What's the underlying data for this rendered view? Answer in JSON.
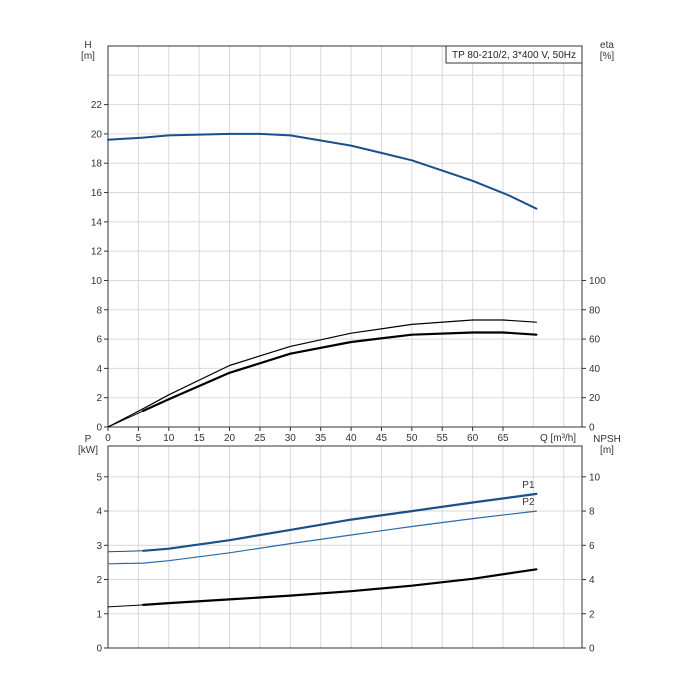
{
  "chart_data": [
    {
      "type": "line",
      "title": "TP 80-210/2, 3*400 V, 50Hz",
      "xlabel": "Q [m³/h]",
      "ylabel": "H\n[m]",
      "ylabel_right": "eta\n[%]",
      "xlim": [
        0,
        78
      ],
      "ylim": [
        0,
        26
      ],
      "ylim_right": [
        0,
        260
      ],
      "x_ticks": [
        "0",
        "5",
        "10",
        "15",
        "20",
        "25",
        "30",
        "35",
        "40",
        "45",
        "50",
        "55",
        "60",
        "65"
      ],
      "y_ticks": [
        "0",
        "2",
        "4",
        "6",
        "8",
        "10",
        "12",
        "14",
        "16",
        "18",
        "20",
        "22"
      ],
      "y_right_ticks": [
        "0",
        "20",
        "40",
        "60",
        "80",
        "100"
      ],
      "grid": true,
      "series": [
        {
          "name": "",
          "axis": "left",
          "color": "#1a4f8a",
          "width": 2,
          "x": [
            0,
            5.8,
            10,
            20,
            25,
            30,
            40,
            50,
            60,
            66,
            70.5
          ],
          "y": [
            19.6,
            19.75,
            19.9,
            20.0,
            20.0,
            19.9,
            19.2,
            18.2,
            16.8,
            15.8,
            14.9
          ]
        },
        {
          "name": "",
          "axis": "left",
          "color": "#1a4f8a",
          "width": 1,
          "x": [
            0,
            5.8
          ],
          "y": [
            19.6,
            19.75
          ]
        },
        {
          "name": "",
          "axis": "right",
          "color": "#000000",
          "width": 1.2,
          "x": [
            0,
            5.8,
            10,
            20,
            30,
            40,
            50,
            60,
            65,
            70.5
          ],
          "y": [
            0,
            12.5,
            22,
            42,
            55,
            64,
            70,
            73,
            73,
            71.5
          ]
        },
        {
          "name": "",
          "axis": "right",
          "color": "#000000",
          "width": 2.2,
          "x": [
            5.8,
            10,
            20,
            30,
            40,
            50,
            60,
            65,
            70.5
          ],
          "y": [
            11,
            19,
            37,
            50,
            58,
            63,
            64.5,
            64.5,
            63
          ]
        },
        {
          "name": "",
          "axis": "right",
          "color": "#000000",
          "width": 1,
          "x": [
            0,
            5.8
          ],
          "y": [
            0,
            11
          ]
        }
      ]
    },
    {
      "type": "line",
      "ylabel": "P\n[kW]",
      "ylabel_right": "NPSH\n[m]",
      "xlim": [
        0,
        78
      ],
      "ylim": [
        0,
        5.9
      ],
      "ylim_right": [
        0,
        11.8
      ],
      "y_ticks": [
        "0",
        "1",
        "2",
        "3",
        "4",
        "5"
      ],
      "y_right_ticks": [
        "0",
        "2",
        "4",
        "6",
        "8",
        "10"
      ],
      "grid": true,
      "series": [
        {
          "name": "P1",
          "axis": "left",
          "color": "#1a4f8a",
          "width": 2.2,
          "x": [
            5.8,
            10,
            20,
            30,
            40,
            50,
            60,
            70.5
          ],
          "y": [
            2.84,
            2.9,
            3.15,
            3.45,
            3.75,
            4.0,
            4.25,
            4.5
          ]
        },
        {
          "name": "",
          "axis": "left",
          "color": "#1a4f8a",
          "width": 1,
          "x": [
            0,
            5.8
          ],
          "y": [
            2.81,
            2.84
          ]
        },
        {
          "name": "P2",
          "axis": "left",
          "color": "#2c6aa8",
          "width": 1.2,
          "x": [
            0,
            5.8,
            10,
            20,
            30,
            40,
            50,
            60,
            70.5
          ],
          "y": [
            2.46,
            2.48,
            2.55,
            2.78,
            3.05,
            3.3,
            3.55,
            3.78,
            4.0
          ]
        },
        {
          "name": "",
          "axis": "right",
          "color": "#000000",
          "width": 2.2,
          "x": [
            5.8,
            10,
            20,
            30,
            40,
            50,
            60,
            70.5
          ],
          "y": [
            2.52,
            2.62,
            2.84,
            3.06,
            3.32,
            3.64,
            4.04,
            4.6
          ]
        },
        {
          "name": "",
          "axis": "right",
          "color": "#000000",
          "width": 1,
          "x": [
            0,
            5.8
          ],
          "y": [
            2.4,
            2.52
          ]
        }
      ]
    }
  ]
}
